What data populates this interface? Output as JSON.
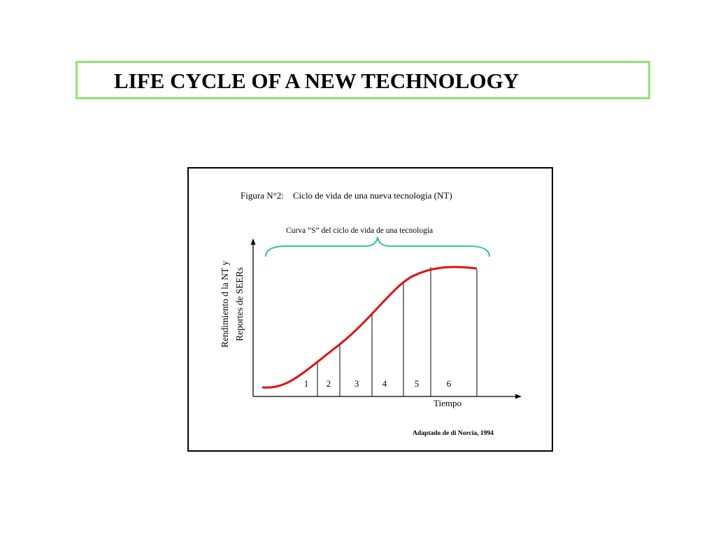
{
  "slide": {
    "title": "LIFE CYCLE OF A NEW TECHNOLOGY"
  },
  "figure": {
    "caption": "Figura N°2:    Ciclo de vida de una nueva tecnología (NT)",
    "brace_label": "Curva “S” del ciclo de vida de una tecnología",
    "y_axis_label_line1": "Rendimiento d la NT y",
    "y_axis_label_line2": "Reportes de SEERs",
    "x_axis_label": "Tiempo",
    "source": "Adaptado de di Norcia, 1994",
    "stages": [
      "1",
      "2",
      "3",
      "4",
      "5",
      "6"
    ],
    "colors": {
      "curve": "#e01010",
      "brace": "#2ec4a0",
      "title_border": "#8ee56f"
    }
  }
}
